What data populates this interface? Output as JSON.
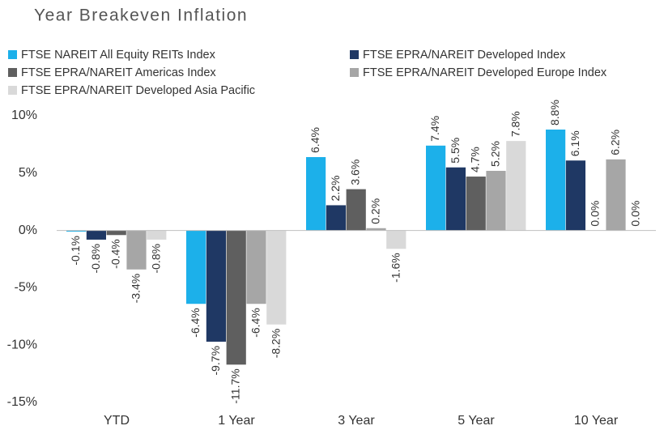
{
  "chart_data": {
    "type": "bar",
    "title": "Year Breakeven Inflation",
    "categories": [
      "YTD",
      "1 Year",
      "3 Year",
      "5 Year",
      "10 Year"
    ],
    "series": [
      {
        "name": "FTSE NAREIT All Equity REITs Index",
        "color": "#1cb0ea",
        "values": [
          -0.1,
          -6.4,
          6.4,
          7.4,
          8.8
        ],
        "value_labels": [
          "-0.1%",
          "-6.4%",
          "6.4%",
          "7.4%",
          "8.8%"
        ]
      },
      {
        "name": "FTSE EPRA/NAREIT Developed Index",
        "color": "#1f3864",
        "values": [
          -0.8,
          -9.7,
          2.2,
          5.5,
          6.1
        ],
        "value_labels": [
          "-0.8%",
          "-9.7%",
          "2.2%",
          "5.5%",
          "6.1%"
        ]
      },
      {
        "name": "FTSE EPRA/NAREIT Americas Index",
        "color": "#5f5f5f",
        "values": [
          -0.4,
          -11.7,
          3.6,
          4.7,
          0.0
        ],
        "value_labels": [
          "-0.4%",
          "-11.7%",
          "3.6%",
          "4.7%",
          "0.0%"
        ]
      },
      {
        "name": "FTSE EPRA/NAREIT Developed Europe Index",
        "color": "#a6a6a6",
        "values": [
          -3.4,
          -6.4,
          0.2,
          5.2,
          6.2
        ],
        "value_labels": [
          "-3.4%",
          "-6.4%",
          "0.2%",
          "5.2%",
          "6.2%"
        ]
      },
      {
        "name": "FTSE EPRA/NAREIT Developed Asia Pacific",
        "color": "#d9d9d9",
        "values": [
          -0.8,
          -8.2,
          -1.6,
          7.8,
          0.0
        ],
        "value_labels": [
          "-0.8%",
          "-8.2%",
          "-1.6%",
          "7.8%",
          "0.0%"
        ]
      }
    ],
    "ylim": [
      -15,
      10
    ],
    "yticks": [
      {
        "value": -15,
        "label": "-15%"
      },
      {
        "value": -10,
        "label": "-10%"
      },
      {
        "value": -5,
        "label": "-5%"
      },
      {
        "value": 0,
        "label": "0%"
      },
      {
        "value": 5,
        "label": "5%"
      },
      {
        "value": 10,
        "label": "10%"
      }
    ]
  }
}
